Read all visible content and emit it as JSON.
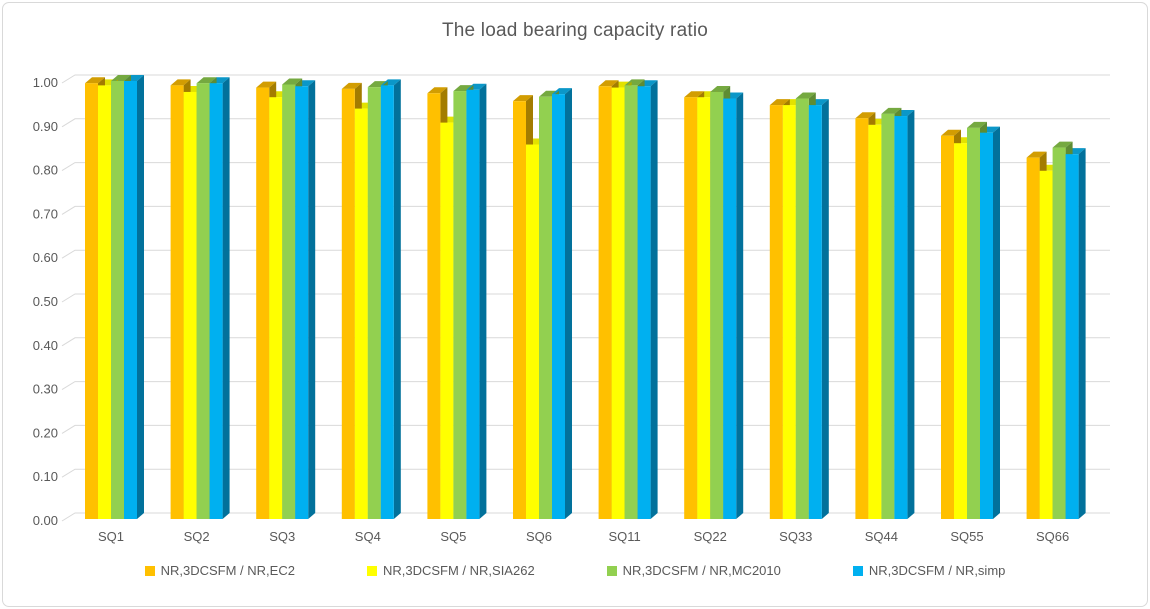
{
  "styles": {
    "text_color": "#595959",
    "grid_color": "#d9d9d9",
    "background": "#ffffff",
    "border_color": "#d9d9d9"
  },
  "chart_data": {
    "type": "bar",
    "style": "3d-clustered-column",
    "title": "The load bearing capacity ratio",
    "categories": [
      "SQ1",
      "SQ2",
      "SQ3",
      "SQ4",
      "SQ5",
      "SQ6",
      "SQ11",
      "SQ22",
      "SQ33",
      "SQ44",
      "SQ55",
      "SQ66"
    ],
    "series": [
      {
        "name": "NR,3DCSFM / NR,EC2",
        "color": "#FFC000",
        "top_color": "#D29D02",
        "side_color": "#A37C00",
        "values": [
          0.995,
          0.99,
          0.985,
          0.982,
          0.972,
          0.954,
          0.988,
          0.963,
          0.945,
          0.915,
          0.875,
          0.825
        ]
      },
      {
        "name": "NR,3DCSFM / NR,SIA262",
        "color": "#FFFF00",
        "top_color": "#E2E200",
        "side_color": "#ADAD00",
        "values": [
          0.99,
          0.975,
          0.963,
          0.937,
          0.905,
          0.855,
          0.985,
          0.963,
          0.945,
          0.9,
          0.858,
          0.795
        ]
      },
      {
        "name": "NR,3DCSFM / NR,MC2010",
        "color": "#92D050",
        "top_color": "#75A940",
        "side_color": "#5E8C33",
        "values": [
          1.0,
          0.995,
          0.992,
          0.986,
          0.977,
          0.964,
          0.99,
          0.975,
          0.96,
          0.925,
          0.893,
          0.848
        ]
      },
      {
        "name": "NR,3DCSFM / NR,simp",
        "color": "#00B0F0",
        "top_color": "#0B97C8",
        "side_color": "#02719B",
        "values": [
          1.0,
          0.995,
          0.988,
          0.99,
          0.98,
          0.97,
          0.988,
          0.96,
          0.945,
          0.92,
          0.882,
          0.833
        ]
      }
    ],
    "ylim": [
      0,
      1.0
    ],
    "ytick_step": 0.1,
    "ytick_labels": [
      "0.00",
      "0.10",
      "0.20",
      "0.30",
      "0.40",
      "0.50",
      "0.60",
      "0.70",
      "0.80",
      "0.90",
      "1.00"
    ],
    "grid": true,
    "legend_position": "bottom",
    "xlabel": "",
    "ylabel": ""
  }
}
